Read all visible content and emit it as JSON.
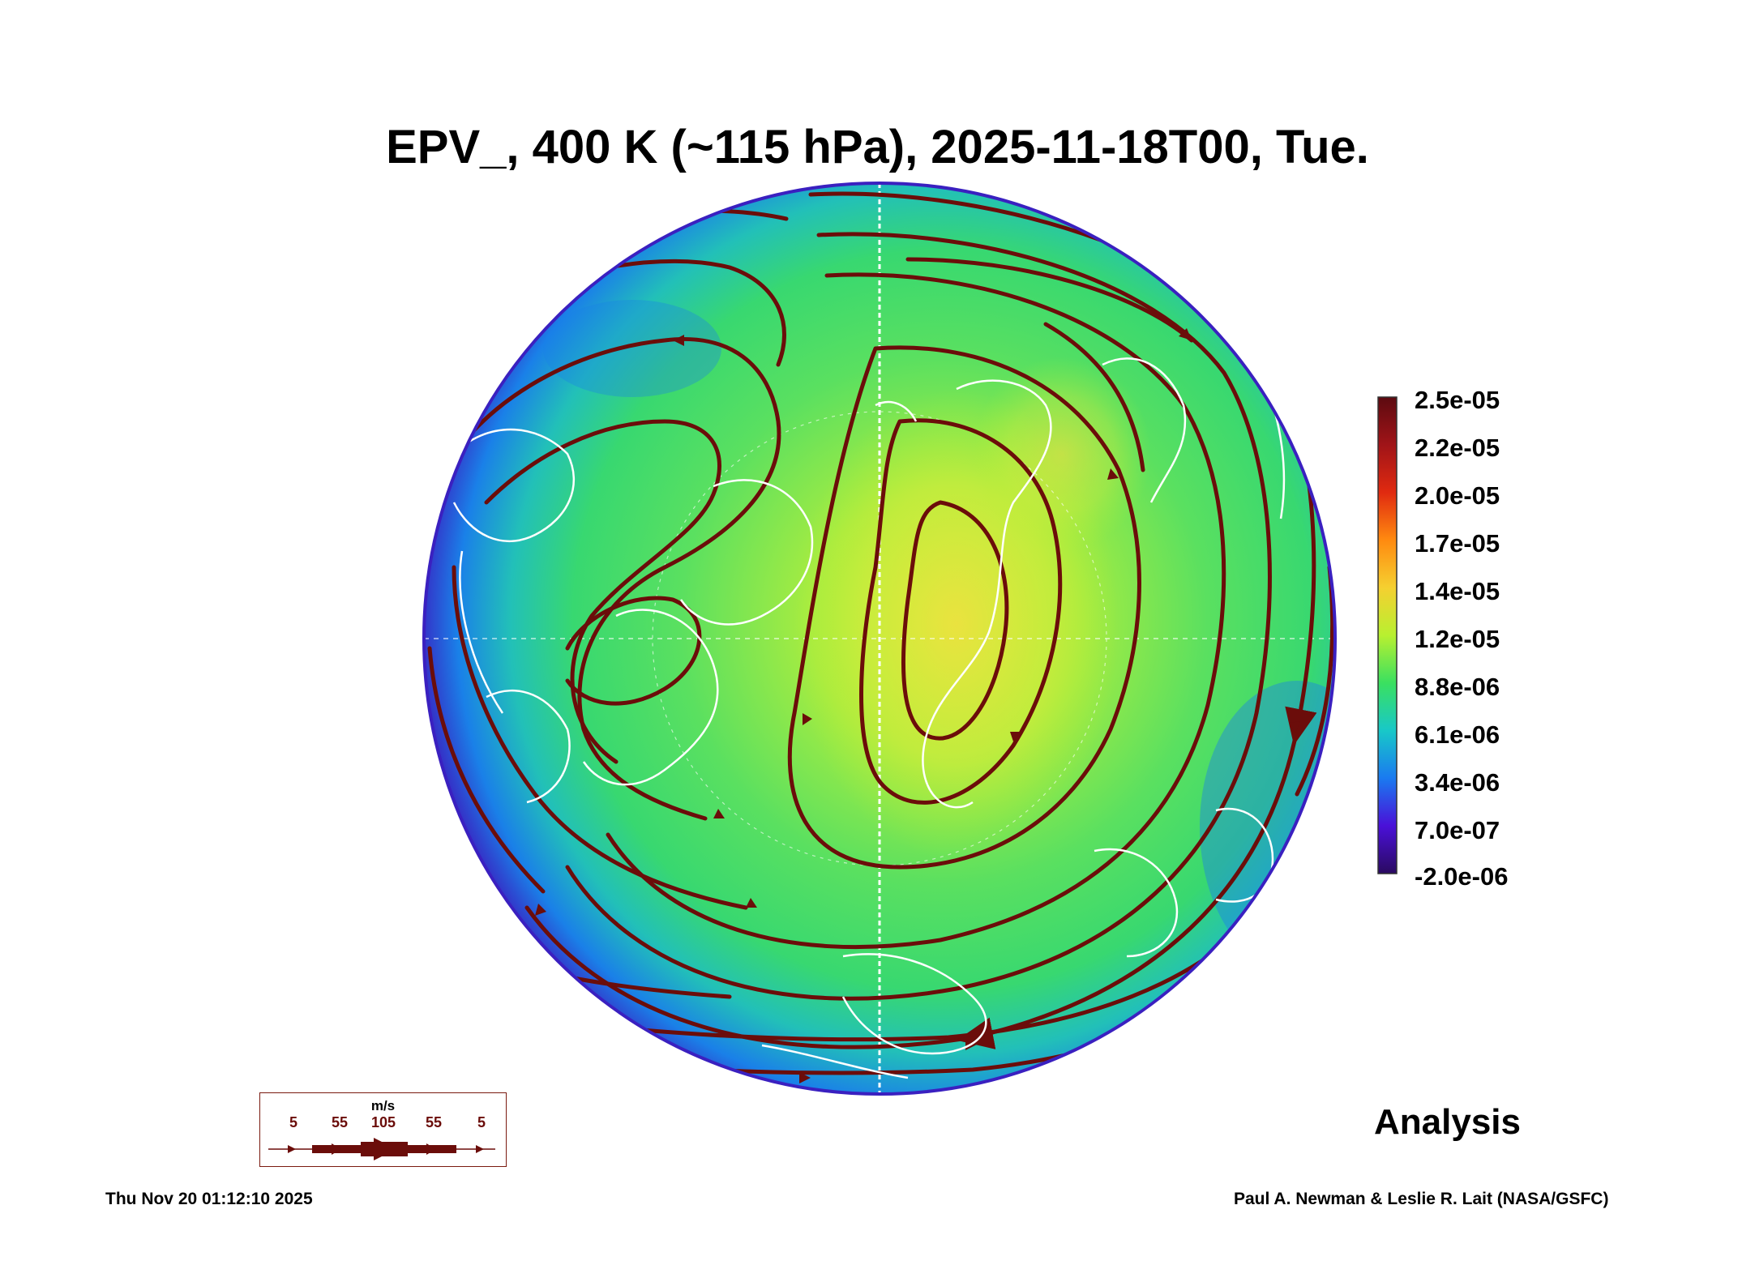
{
  "title": "EPV_, 400 K (~115 hPa), 2025-11-18T00, Tue.",
  "colorbar": {
    "labels": [
      "2.5e-05",
      "2.2e-05",
      "2.0e-05",
      "1.7e-05",
      "1.4e-05",
      "1.2e-05",
      "8.8e-06",
      "6.1e-06",
      "3.4e-06",
      "7.0e-07",
      "-2.0e-06"
    ],
    "colors": [
      "#5c0a10",
      "#c01818",
      "#ff4a10",
      "#ff9a10",
      "#f5e03a",
      "#b8f030",
      "#3ae060",
      "#18c8c8",
      "#1a7af0",
      "#4a10d8",
      "#2a0a60"
    ]
  },
  "legend": {
    "units": "m/s",
    "speeds": [
      "5",
      "55",
      "105",
      "55",
      "5"
    ],
    "color": "#6b0d0a"
  },
  "map_colors": {
    "streamline": "#6b0d0a",
    "coastline": "#ffffff",
    "ocean_edge": "#3a20c0"
  },
  "analysis_label": "Analysis",
  "timestamp": "Thu Nov 20 01:12:10 2025",
  "credit": "Paul A. Newman & Leslie R. Lait (NASA/GSFC)"
}
